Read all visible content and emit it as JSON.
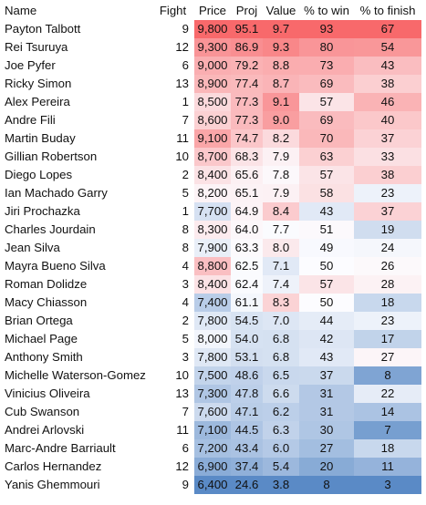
{
  "headers": {
    "name": "Name",
    "fight": "Fight",
    "price": "Price",
    "proj": "Proj",
    "value": "Value",
    "win": "% to win",
    "finish": "% to finish"
  },
  "rows": [
    {
      "name": "Payton Talbott",
      "fight": "9",
      "price": "9,800",
      "proj": "95.1",
      "value": "9.7",
      "win": "93",
      "finish": "67"
    },
    {
      "name": "Rei Tsuruya",
      "fight": "12",
      "price": "9,300",
      "proj": "86.9",
      "value": "9.3",
      "win": "80",
      "finish": "54"
    },
    {
      "name": "Joe Pyfer",
      "fight": "6",
      "price": "9,000",
      "proj": "79.2",
      "value": "8.8",
      "win": "73",
      "finish": "43"
    },
    {
      "name": "Ricky Simon",
      "fight": "13",
      "price": "8,900",
      "proj": "77.4",
      "value": "8.7",
      "win": "69",
      "finish": "38"
    },
    {
      "name": "Alex Pereira",
      "fight": "1",
      "price": "8,500",
      "proj": "77.3",
      "value": "9.1",
      "win": "57",
      "finish": "46"
    },
    {
      "name": "Andre Fili",
      "fight": "7",
      "price": "8,600",
      "proj": "77.3",
      "value": "9.0",
      "win": "69",
      "finish": "40"
    },
    {
      "name": "Martin Buday",
      "fight": "11",
      "price": "9,100",
      "proj": "74.7",
      "value": "8.2",
      "win": "70",
      "finish": "37"
    },
    {
      "name": "Gillian Robertson",
      "fight": "10",
      "price": "8,700",
      "proj": "68.3",
      "value": "7.9",
      "win": "63",
      "finish": "33"
    },
    {
      "name": "Diego Lopes",
      "fight": "2",
      "price": "8,400",
      "proj": "65.6",
      "value": "7.8",
      "win": "57",
      "finish": "38"
    },
    {
      "name": "Ian Machado Garry",
      "fight": "5",
      "price": "8,200",
      "proj": "65.1",
      "value": "7.9",
      "win": "58",
      "finish": "23"
    },
    {
      "name": "Jiri Prochazka",
      "fight": "1",
      "price": "7,700",
      "proj": "64.9",
      "value": "8.4",
      "win": "43",
      "finish": "37"
    },
    {
      "name": "Charles Jourdain",
      "fight": "8",
      "price": "8,300",
      "proj": "64.0",
      "value": "7.7",
      "win": "51",
      "finish": "19"
    },
    {
      "name": "Jean Silva",
      "fight": "8",
      "price": "7,900",
      "proj": "63.3",
      "value": "8.0",
      "win": "49",
      "finish": "24"
    },
    {
      "name": "Mayra Bueno Silva",
      "fight": "4",
      "price": "8,800",
      "proj": "62.5",
      "value": "7.1",
      "win": "50",
      "finish": "26"
    },
    {
      "name": "Roman Dolidze",
      "fight": "3",
      "price": "8,400",
      "proj": "62.4",
      "value": "7.4",
      "win": "57",
      "finish": "28"
    },
    {
      "name": "Macy Chiasson",
      "fight": "4",
      "price": "7,400",
      "proj": "61.1",
      "value": "8.3",
      "win": "50",
      "finish": "18"
    },
    {
      "name": "Brian Ortega",
      "fight": "2",
      "price": "7,800",
      "proj": "54.5",
      "value": "7.0",
      "win": "44",
      "finish": "23"
    },
    {
      "name": "Michael Page",
      "fight": "5",
      "price": "8,000",
      "proj": "54.0",
      "value": "6.8",
      "win": "42",
      "finish": "17"
    },
    {
      "name": "Anthony Smith",
      "fight": "3",
      "price": "7,800",
      "proj": "53.1",
      "value": "6.8",
      "win": "43",
      "finish": "27"
    },
    {
      "name": "Michelle Waterson-Gomez",
      "fight": "10",
      "price": "7,500",
      "proj": "48.6",
      "value": "6.5",
      "win": "37",
      "finish": "8"
    },
    {
      "name": "Vinicius Oliveira",
      "fight": "13",
      "price": "7,300",
      "proj": "47.8",
      "value": "6.6",
      "win": "31",
      "finish": "22"
    },
    {
      "name": "Cub Swanson",
      "fight": "7",
      "price": "7,600",
      "proj": "47.1",
      "value": "6.2",
      "win": "31",
      "finish": "14"
    },
    {
      "name": "Andrei Arlovski",
      "fight": "11",
      "price": "7,100",
      "proj": "44.5",
      "value": "6.3",
      "win": "30",
      "finish": "7"
    },
    {
      "name": "Marc-Andre Barriault",
      "fight": "6",
      "price": "7,200",
      "proj": "43.4",
      "value": "6.0",
      "win": "27",
      "finish": "18"
    },
    {
      "name": "Carlos Hernandez",
      "fight": "12",
      "price": "6,900",
      "proj": "37.4",
      "value": "5.4",
      "win": "20",
      "finish": "11"
    },
    {
      "name": "Yanis Ghemmouri",
      "fight": "9",
      "price": "6,400",
      "proj": "24.6",
      "value": "3.8",
      "win": "8",
      "finish": "3"
    }
  ],
  "color_scale": {
    "low": "#5a8ac6",
    "mid": "#fcfcff",
    "high": "#f8696b"
  }
}
